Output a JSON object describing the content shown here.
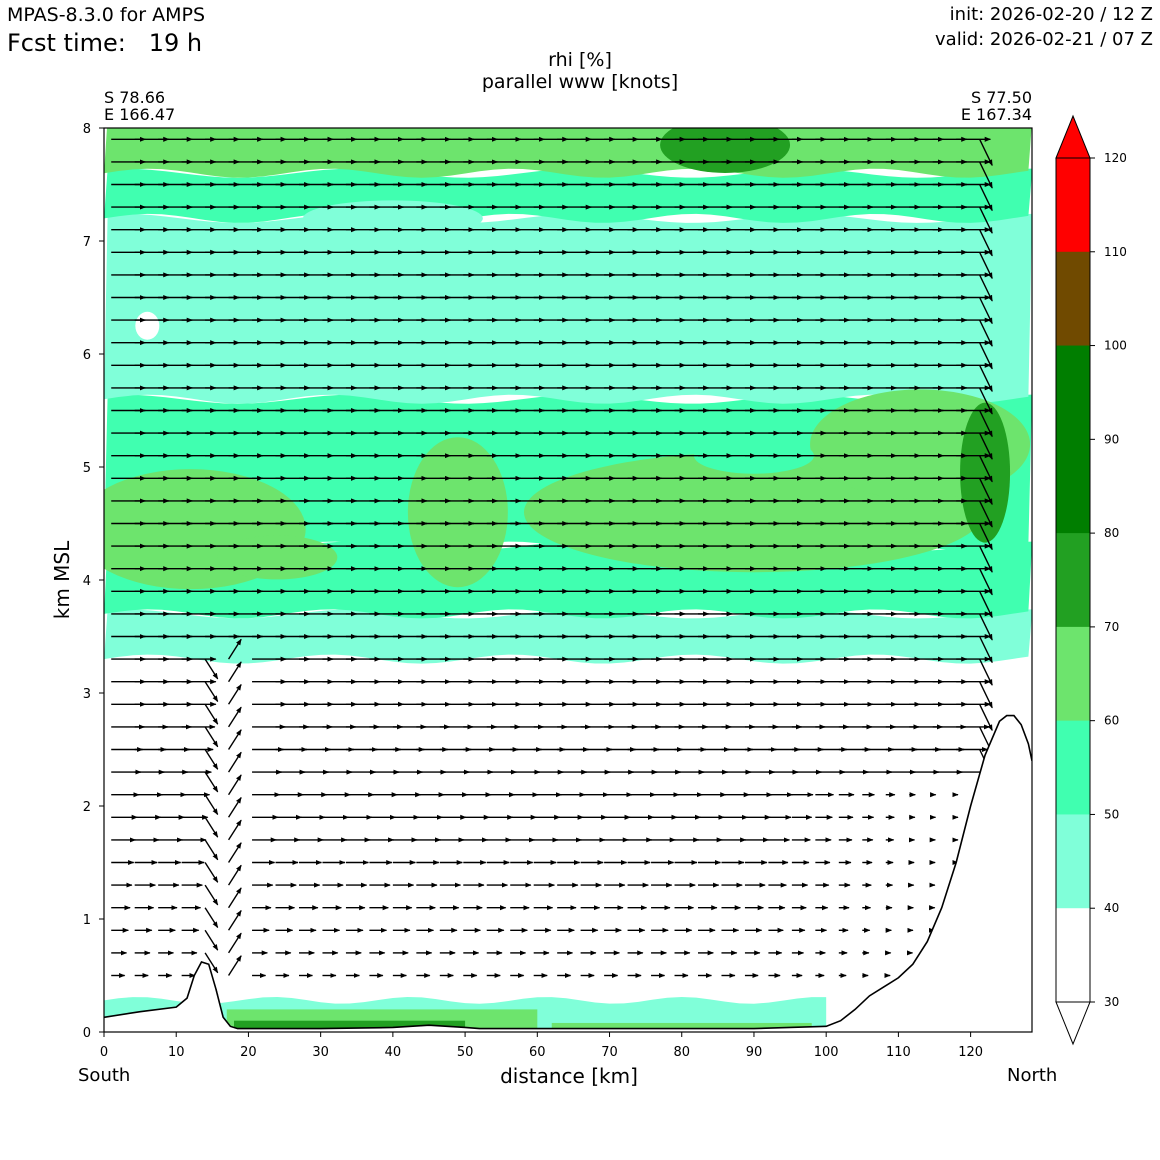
{
  "header": {
    "model": "MPAS-8.3.0 for AMPS",
    "fcst_label": "Fcst time:",
    "fcst_value": "19 h",
    "init": "init: 2026-02-20 / 12 Z",
    "valid": "valid: 2026-02-21 / 07 Z"
  },
  "chart_data": {
    "type": "heatmap",
    "title": "rhi [%]",
    "subtitle": "parallel www [knots]",
    "xlabel": "distance [km]",
    "ylabel": "km MSL",
    "xlim": [
      0,
      128.5
    ],
    "ylim": [
      0,
      8
    ],
    "x_ticks": [
      "0",
      "10",
      "20",
      "30",
      "40",
      "50",
      "60",
      "70",
      "80",
      "90",
      "100",
      "110",
      "120"
    ],
    "y_ticks": [
      "0",
      "1",
      "2",
      "3",
      "4",
      "5",
      "6",
      "7",
      "8"
    ],
    "start_point": {
      "lat": "S 78.66",
      "lon": "E 166.47"
    },
    "end_point": {
      "lat": "S 77.50",
      "lon": "E 167.34"
    },
    "left_label": "South",
    "right_label": "North",
    "colorbar": {
      "levels": [
        "30",
        "40",
        "50",
        "60",
        "70",
        "80",
        "90",
        "100",
        "110",
        "120"
      ],
      "colors": [
        "#ffffff",
        "#80ffd9",
        "#40ffb0",
        "#6de46d",
        "#22a022",
        "#007e00",
        "#007e00",
        "#704a00",
        "#ff0000"
      ],
      "extend": "both"
    },
    "terrain": {
      "x": [
        0,
        5,
        10,
        11.5,
        12.5,
        13.5,
        14.5,
        15.5,
        16.5,
        17.5,
        18.5,
        20,
        30,
        40,
        45,
        50,
        52,
        60,
        70,
        80,
        90,
        95,
        100,
        102,
        104,
        106,
        108,
        110,
        112,
        114,
        116,
        118,
        120,
        122,
        124,
        125,
        126,
        127,
        128,
        128.5
      ],
      "y": [
        0.13,
        0.18,
        0.22,
        0.3,
        0.5,
        0.62,
        0.6,
        0.38,
        0.13,
        0.05,
        0.03,
        0.03,
        0.03,
        0.04,
        0.06,
        0.04,
        0.03,
        0.03,
        0.03,
        0.03,
        0.03,
        0.04,
        0.05,
        0.1,
        0.2,
        0.32,
        0.4,
        0.48,
        0.6,
        0.8,
        1.1,
        1.5,
        2.0,
        2.45,
        2.75,
        2.8,
        2.8,
        2.72,
        2.55,
        2.4
      ]
    },
    "rh_bands": [
      {
        "level": "40-50",
        "bottom_km": 3.3,
        "top_km": 3.7
      },
      {
        "level": "50-60",
        "bottom_km": 3.7,
        "top_km": 4.3
      },
      {
        "level": "60-70",
        "region": "x 0-30 km, z 3.9-5.0 km"
      },
      {
        "level": "50-60",
        "bottom_km": 4.3,
        "top_km": 5.6
      },
      {
        "level": "40-50",
        "bottom_km": 5.6,
        "top_km": 7.2
      },
      {
        "level": "50-60",
        "bottom_km": 7.2,
        "top_km": 7.6
      },
      {
        "level": "60-70",
        "bottom_km": 7.6,
        "top_km": 8.0
      }
    ]
  }
}
